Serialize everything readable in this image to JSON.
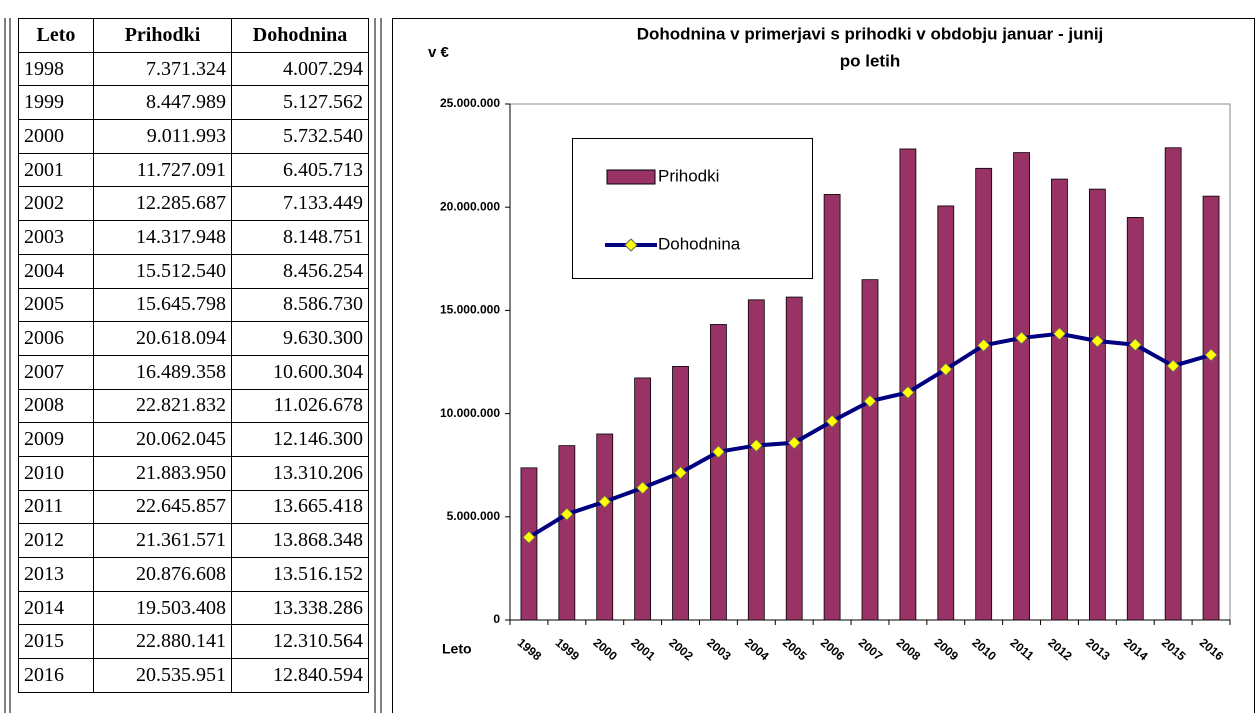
{
  "table": {
    "header": [
      "Leto",
      "Prihodki",
      "Dohodnina"
    ],
    "rows": [
      [
        "1998",
        "7.371.324",
        "4.007.294"
      ],
      [
        "1999",
        "8.447.989",
        "5.127.562"
      ],
      [
        "2000",
        "9.011.993",
        "5.732.540"
      ],
      [
        "2001",
        "11.727.091",
        "6.405.713"
      ],
      [
        "2002",
        "12.285.687",
        "7.133.449"
      ],
      [
        "2003",
        "14.317.948",
        "8.148.751"
      ],
      [
        "2004",
        "15.512.540",
        "8.456.254"
      ],
      [
        "2005",
        "15.645.798",
        "8.586.730"
      ],
      [
        "2006",
        "20.618.094",
        "9.630.300"
      ],
      [
        "2007",
        "16.489.358",
        "10.600.304"
      ],
      [
        "2008",
        "22.821.832",
        "11.026.678"
      ],
      [
        "2009",
        "20.062.045",
        "12.146.300"
      ],
      [
        "2010",
        "21.883.950",
        "13.310.206"
      ],
      [
        "2011",
        "22.645.857",
        "13.665.418"
      ],
      [
        "2012",
        "21.361.571",
        "13.868.348"
      ],
      [
        "2013",
        "20.876.608",
        "13.516.152"
      ],
      [
        "2014",
        "19.503.408",
        "13.338.286"
      ],
      [
        "2015",
        "22.880.141",
        "12.310.564"
      ],
      [
        "2016",
        "20.535.951",
        "12.840.594"
      ]
    ]
  },
  "chart_data": {
    "type": "bar-line",
    "title": [
      "Dohodnina v primerjavi s prihodki v obdobju januar - junij",
      "po letih"
    ],
    "y_label": "v €",
    "x_label": "Leto",
    "categories": [
      "1998",
      "1999",
      "2000",
      "2001",
      "2002",
      "2003",
      "2004",
      "2005",
      "2006",
      "2007",
      "2008",
      "2009",
      "2010",
      "2011",
      "2012",
      "2013",
      "2014",
      "2015",
      "2016"
    ],
    "series": [
      {
        "name": "Prihodki",
        "type": "bar",
        "color": "#993366",
        "values": [
          7371324,
          8447989,
          9011993,
          11727091,
          12285687,
          14317948,
          15512540,
          15645798,
          20618094,
          16489358,
          22821832,
          20062045,
          21883950,
          22645857,
          21361571,
          20876608,
          19503408,
          22880141,
          20535951
        ]
      },
      {
        "name": "Dohodnina",
        "type": "line",
        "color": "#000080",
        "marker_color": "#ffff00",
        "values": [
          4007294,
          5127562,
          5732540,
          6405713,
          7133449,
          8148751,
          8456254,
          8586730,
          9630300,
          10600304,
          11026678,
          12146300,
          13310206,
          13665418,
          13868348,
          13516152,
          13338286,
          12310564,
          12840594
        ]
      }
    ],
    "ylim": [
      0,
      25000000
    ],
    "yticks": [
      0,
      {
        "value": 5000000,
        "label": "5.000.000"
      },
      {
        "value": 10000000,
        "label": "10.000.000"
      },
      {
        "value": 15000000,
        "label": "15.000.000"
      },
      {
        "value": 20000000,
        "label": "20.000.000"
      },
      {
        "value": 25000000,
        "label": "25.000.000"
      }
    ],
    "grid": false,
    "legend": "upper left"
  }
}
